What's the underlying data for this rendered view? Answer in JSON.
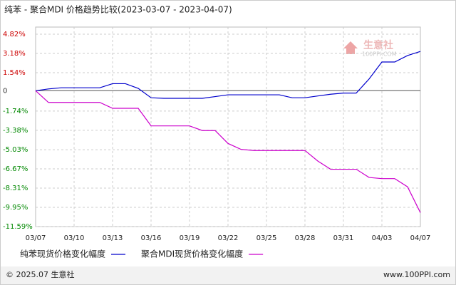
{
  "chart_data": {
    "type": "line",
    "title": "纯苯 - 聚合MDI 价格趋势比较(2023-03-07 - 2023-04-07)",
    "categories": [
      "03/07",
      null,
      null,
      "03/10",
      null,
      null,
      "03/13",
      null,
      null,
      "03/16",
      null,
      null,
      "03/19",
      null,
      null,
      "03/22",
      null,
      null,
      "03/25",
      null,
      null,
      "03/28",
      null,
      null,
      "03/31",
      null,
      null,
      "04/03",
      null,
      null,
      "04/07"
    ],
    "series": [
      {
        "name": "纯苯现货价格变化幅度",
        "color": "#0000cc",
        "values": [
          0,
          0.15,
          0.25,
          0.25,
          0.25,
          0.25,
          0.6,
          0.6,
          0.2,
          -0.6,
          -0.65,
          -0.65,
          -0.65,
          -0.65,
          -0.5,
          -0.35,
          -0.35,
          -0.35,
          -0.35,
          -0.35,
          -0.6,
          -0.6,
          -0.45,
          -0.3,
          -0.2,
          -0.2,
          1.0,
          2.45,
          2.45,
          3.0,
          3.35
        ]
      },
      {
        "name": "聚合MDI现货价格变化幅度",
        "color": "#cc00cc",
        "values": [
          0,
          -1.0,
          -1.0,
          -1.0,
          -1.0,
          -1.0,
          -1.5,
          -1.5,
          -1.5,
          -3.0,
          -3.0,
          -3.0,
          -3.0,
          -3.4,
          -3.4,
          -4.5,
          -5.0,
          -5.1,
          -5.1,
          -5.1,
          -5.1,
          -5.1,
          -6.0,
          -6.7,
          -6.7,
          -6.7,
          -7.4,
          -7.5,
          -7.5,
          -8.2,
          -10.4
        ]
      }
    ],
    "ylim": [
      -11.59,
      4.82
    ],
    "yticks": [
      {
        "value": 4.82,
        "label": "4.82%"
      },
      {
        "value": 3.18,
        "label": "3.18%"
      },
      {
        "value": 1.54,
        "label": "1.54%"
      },
      0,
      {
        "value": -1.74,
        "label": "-1.74%"
      },
      {
        "value": -3.38,
        "label": "-3.38%"
      },
      {
        "value": -5.03,
        "label": "-5.03%"
      },
      {
        "value": -6.67,
        "label": "-6.67%"
      },
      {
        "value": -8.31,
        "label": "-8.31%"
      },
      {
        "value": -9.95,
        "label": "-9.95%"
      },
      {
        "value": -11.59,
        "label": "-11.59%"
      }
    ],
    "grid": true,
    "positive_tick_color": "#cc0000",
    "negative_tick_color": "#008800",
    "zero_tick_color": "#333333"
  },
  "watermark": {
    "name": "生意社",
    "url": "100PPI.COM"
  },
  "footer": {
    "left": "© 2025.07 生意社",
    "right": "www.100PPI.com"
  }
}
